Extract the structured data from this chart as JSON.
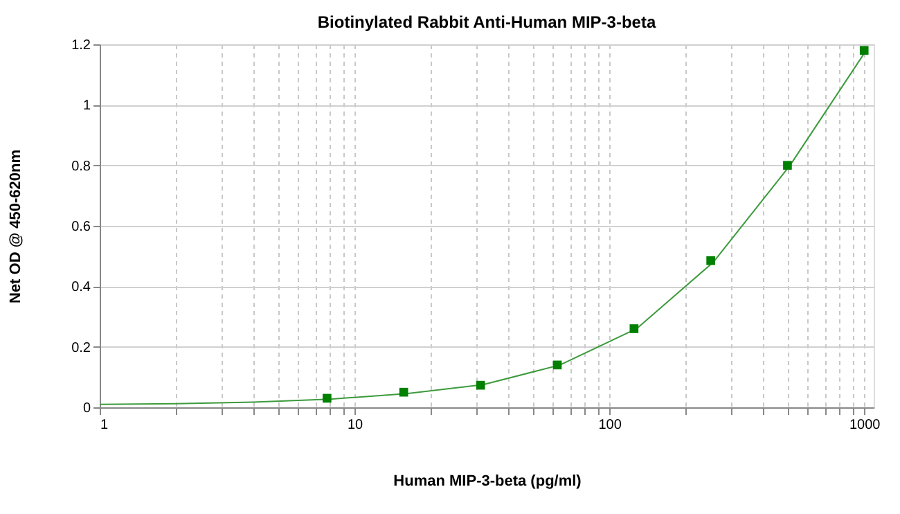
{
  "chart_data": {
    "type": "scatter",
    "title": "Biotinylated Rabbit Anti-Human MIP-3-beta",
    "xlabel": "Human MIP-3-beta (pg/ml)",
    "ylabel": "Net OD @ 450-620nm",
    "series": [
      {
        "type": "line",
        "color": "#3c9a3c",
        "marker": "none",
        "x": [
          1,
          2,
          4,
          8,
          16,
          32,
          64,
          128,
          256,
          512,
          1000
        ],
        "values": [
          0.01,
          0.012,
          0.017,
          0.027,
          0.045,
          0.075,
          0.14,
          0.26,
          0.48,
          0.8,
          1.17
        ]
      },
      {
        "color": "#008000",
        "marker": "square",
        "x": [
          7.8,
          15.6,
          31.25,
          62.5,
          125,
          250,
          500,
          1000
        ],
        "values": [
          0.03,
          0.05,
          0.073,
          0.14,
          0.26,
          0.485,
          0.8,
          1.18
        ]
      }
    ],
    "log": "x",
    "xlim": [
      1,
      1090
    ],
    "ylim": [
      0,
      1.2
    ],
    "xticks": [
      1,
      {
        "value": 2,
        "label": null
      },
      {
        "value": 3,
        "label": null
      },
      {
        "value": 4,
        "label": null
      },
      {
        "value": 5,
        "label": null
      },
      {
        "value": 6,
        "label": null
      },
      {
        "value": 7,
        "label": null
      },
      {
        "value": 8,
        "label": null
      },
      {
        "value": 9,
        "label": null
      },
      10,
      {
        "value": 20,
        "label": null
      },
      {
        "value": 30,
        "label": null
      },
      {
        "value": 40,
        "label": null
      },
      {
        "value": 50,
        "label": null
      },
      {
        "value": 60,
        "label": null
      },
      {
        "value": 70,
        "label": null
      },
      {
        "value": 80,
        "label": null
      },
      {
        "value": 90,
        "label": null
      },
      100,
      {
        "value": 200,
        "label": null
      },
      {
        "value": 300,
        "label": null
      },
      {
        "value": 400,
        "label": null
      },
      {
        "value": 500,
        "label": null
      },
      {
        "value": 600,
        "label": null
      },
      {
        "value": 700,
        "label": null
      },
      {
        "value": 800,
        "label": null
      },
      {
        "value": 900,
        "label": null
      },
      1000
    ],
    "yticks": [
      0,
      0.2,
      0.4,
      0.6,
      0.8,
      1,
      1.2
    ],
    "grid": true
  }
}
